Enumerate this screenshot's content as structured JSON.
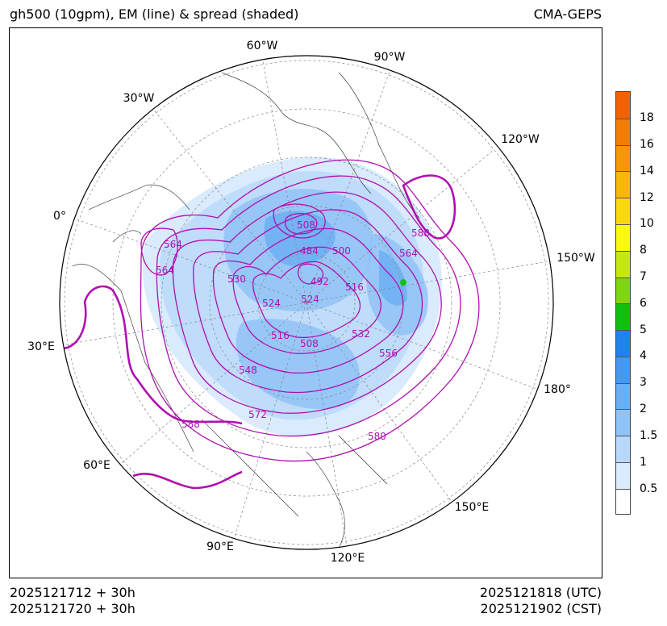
{
  "header": {
    "title_left": "gh500 (10gpm), EM (line) & spread (shaded)",
    "title_right": "CMA-GEPS"
  },
  "footer": {
    "init_utc": "2025121712 + 30h",
    "init_cst": "2025121720 + 30h",
    "valid_utc": "2025121818 (UTC)",
    "valid_cst": "2025121902 (CST)"
  },
  "map": {
    "projection": "north-polar-stereographic",
    "longitude_labels": {
      "w60": "60°W",
      "w90": "90°W",
      "w30": "30°W",
      "w120": "120°W",
      "e0": "0°",
      "w150": "150°W",
      "e30": "30°E",
      "e180": "180°",
      "e60": "60°E",
      "e150": "150°E",
      "e90": "90°E",
      "e120": "120°E"
    },
    "contour_labels": [
      "564",
      "564",
      "508",
      "484",
      "500",
      "492",
      "588",
      "564",
      "530",
      "516",
      "524",
      "524",
      "516",
      "508",
      "532",
      "556",
      "548",
      "572",
      "588",
      "580"
    ],
    "contour_color": "#b010b0",
    "thick_contour": "588"
  },
  "colorbar": {
    "ticks": [
      "0.5",
      "1",
      "1.5",
      "2",
      "3",
      "4",
      "5",
      "6",
      "7",
      "8",
      "10",
      "12",
      "14",
      "16",
      "18"
    ],
    "colors": [
      "#ffffff",
      "#d9ebfc",
      "#b8d8fa",
      "#8fc2f6",
      "#6aaef3",
      "#4597f0",
      "#1f82ed",
      "#10c010",
      "#7dd60e",
      "#c4e810",
      "#fafa10",
      "#f9d90d",
      "#f8b80a",
      "#f59807",
      "#f47c05",
      "#f26103"
    ]
  }
}
